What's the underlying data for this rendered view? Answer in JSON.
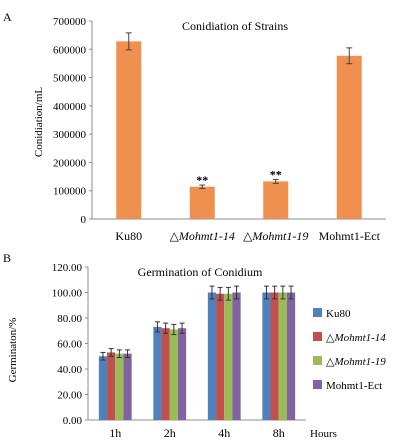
{
  "colors": {
    "bar_a": "#F0904F",
    "ku80": "#4F81BD",
    "mohmt1_14": "#C0504D",
    "mohmt1_19": "#9BBB59",
    "mohmt1_ect": "#8064A2",
    "axis": "#8C8C8C"
  },
  "chart_data": [
    {
      "type": "bar",
      "panel_label": "A",
      "title": "Conidiation of Strains",
      "ylabel": "Conidiation/mL",
      "xlabel": "",
      "categories": [
        {
          "prefix": "",
          "name": "Ku80"
        },
        {
          "prefix": "△",
          "name": "Mohmt1-14"
        },
        {
          "prefix": "△",
          "name": "Mohmt1-19"
        },
        {
          "prefix": "",
          "name": "Mohmt1-Ect"
        }
      ],
      "values": [
        628000,
        114000,
        133000,
        577000
      ],
      "errors": [
        30000,
        6000,
        7000,
        28000
      ],
      "annotations": [
        "",
        "**",
        "**",
        ""
      ],
      "ylim": [
        0,
        700000
      ],
      "yticks": [
        "0",
        "100000",
        "200000",
        "300000",
        "400000",
        "500000",
        "600000",
        "700000"
      ],
      "grid": false
    },
    {
      "type": "bar",
      "panel_label": "B",
      "title": "Germination of Conidium",
      "ylabel": "Germinaton/%",
      "xlabel": "Hours",
      "categories": [
        "1h",
        "2h",
        "4h",
        "8h"
      ],
      "series": [
        {
          "name": "Ku80",
          "prefix": "",
          "values": [
            50,
            73,
            100,
            100
          ],
          "errors": [
            3,
            4,
            5,
            5
          ]
        },
        {
          "name": "Mohmt1-14",
          "prefix": "△",
          "values": [
            53,
            72,
            99,
            100
          ],
          "errors": [
            3,
            4,
            5,
            5
          ]
        },
        {
          "name": "Mohmt1-19",
          "prefix": "△",
          "values": [
            52,
            71,
            99,
            100
          ],
          "errors": [
            3,
            4,
            5,
            5
          ]
        },
        {
          "name": "Mohmt1-Ect",
          "prefix": "",
          "values": [
            52,
            72,
            100,
            100
          ],
          "errors": [
            3,
            4,
            5,
            5
          ]
        }
      ],
      "ylim": [
        0,
        120
      ],
      "yticks": [
        "0.00",
        "20.00",
        "40.00",
        "60.00",
        "80.00",
        "100.00",
        "120.00"
      ],
      "legend": "right",
      "grid": false
    }
  ]
}
